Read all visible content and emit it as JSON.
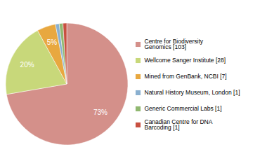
{
  "chart_data": {
    "type": "pie",
    "categories": [
      "Centre for Biodiversity\nGenomics [103]",
      "Wellcome Sanger Institute [28]",
      "Mined from GenBank, NCBI [7]",
      "Natural History Museum, London [1]",
      "Generic Commercial Labs [1]",
      "Canadian Centre for DNA\nBarcoding [1]"
    ],
    "values": [
      73,
      20,
      5,
      1,
      1,
      1
    ],
    "value_labels": [
      "73%",
      "20%",
      "5%",
      null,
      null,
      null
    ],
    "colors": [
      "#d4908a",
      "#c8d87a",
      "#e8a840",
      "#8ab0d0",
      "#90b870",
      "#c85040"
    ],
    "data_labels": true,
    "legend": "right"
  }
}
